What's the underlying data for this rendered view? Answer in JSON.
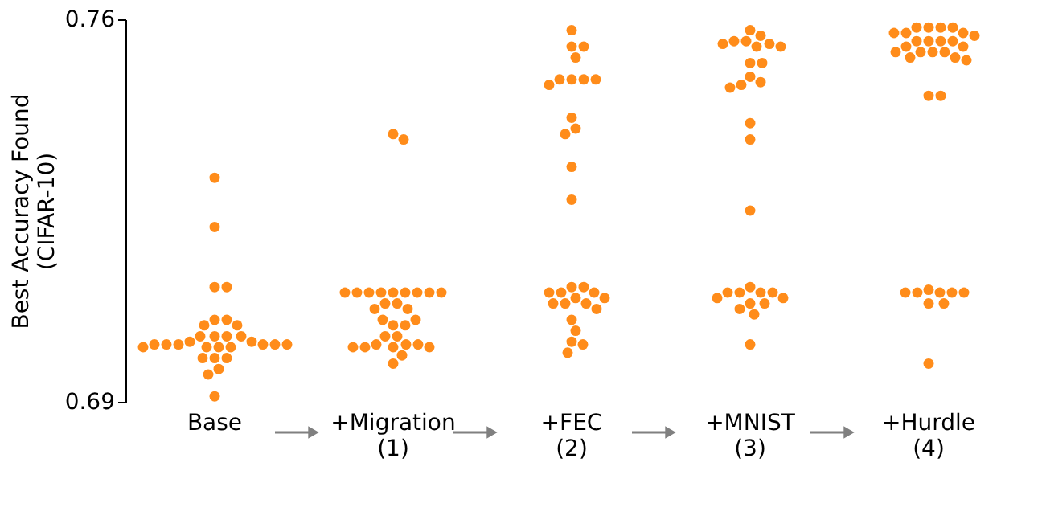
{
  "chart_data": {
    "type": "scatter",
    "ylabel": "Best Accuracy Found\n(CIFAR-10)",
    "categories": [
      "Base",
      "+Migration\n(1)",
      "+FEC\n(2)",
      "+MNIST\n(3)",
      "+Hurdle\n(4)"
    ],
    "ylim": [
      0.69,
      0.76
    ],
    "yticks": [
      0.69,
      0.76
    ],
    "tick_labels": "y",
    "series": [
      {
        "color": "#ff8c1a",
        "x": [
          "Base",
          "Base",
          "Base",
          "Base",
          "Base",
          "Base",
          "Base",
          "Base",
          "Base",
          "Base",
          "Base",
          "Base",
          "Base",
          "Base",
          "Base",
          "Base",
          "Base",
          "Base",
          "Base",
          "Base",
          "Base",
          "Base",
          "Base",
          "Base",
          "Base",
          "Base",
          "Base",
          "Base",
          "Base",
          "Base",
          "+Migration\n(1)",
          "+Migration\n(1)",
          "+Migration\n(1)",
          "+Migration\n(1)",
          "+Migration\n(1)",
          "+Migration\n(1)",
          "+Migration\n(1)",
          "+Migration\n(1)",
          "+Migration\n(1)",
          "+Migration\n(1)",
          "+Migration\n(1)",
          "+Migration\n(1)",
          "+Migration\n(1)",
          "+Migration\n(1)",
          "+Migration\n(1)",
          "+Migration\n(1)",
          "+Migration\n(1)",
          "+Migration\n(1)",
          "+Migration\n(1)",
          "+Migration\n(1)",
          "+Migration\n(1)",
          "+Migration\n(1)",
          "+Migration\n(1)",
          "+Migration\n(1)",
          "+Migration\n(1)",
          "+Migration\n(1)",
          "+Migration\n(1)",
          "+Migration\n(1)",
          "+Migration\n(1)",
          "+Migration\n(1)",
          "+FEC\n(2)",
          "+FEC\n(2)",
          "+FEC\n(2)",
          "+FEC\n(2)",
          "+FEC\n(2)",
          "+FEC\n(2)",
          "+FEC\n(2)",
          "+FEC\n(2)",
          "+FEC\n(2)",
          "+FEC\n(2)",
          "+FEC\n(2)",
          "+FEC\n(2)",
          "+FEC\n(2)",
          "+FEC\n(2)",
          "+FEC\n(2)",
          "+FEC\n(2)",
          "+FEC\n(2)",
          "+FEC\n(2)",
          "+FEC\n(2)",
          "+FEC\n(2)",
          "+FEC\n(2)",
          "+FEC\n(2)",
          "+FEC\n(2)",
          "+FEC\n(2)",
          "+FEC\n(2)",
          "+FEC\n(2)",
          "+FEC\n(2)",
          "+FEC\n(2)",
          "+FEC\n(2)",
          "+FEC\n(2)",
          "+MNIST\n(3)",
          "+MNIST\n(3)",
          "+MNIST\n(3)",
          "+MNIST\n(3)",
          "+MNIST\n(3)",
          "+MNIST\n(3)",
          "+MNIST\n(3)",
          "+MNIST\n(3)",
          "+MNIST\n(3)",
          "+MNIST\n(3)",
          "+MNIST\n(3)",
          "+MNIST\n(3)",
          "+MNIST\n(3)",
          "+MNIST\n(3)",
          "+MNIST\n(3)",
          "+MNIST\n(3)",
          "+MNIST\n(3)",
          "+MNIST\n(3)",
          "+MNIST\n(3)",
          "+MNIST\n(3)",
          "+MNIST\n(3)",
          "+MNIST\n(3)",
          "+MNIST\n(3)",
          "+MNIST\n(3)",
          "+MNIST\n(3)",
          "+MNIST\n(3)",
          "+MNIST\n(3)",
          "+MNIST\n(3)",
          "+MNIST\n(3)",
          "+Hurdle\n(4)",
          "+Hurdle\n(4)",
          "+Hurdle\n(4)",
          "+Hurdle\n(4)",
          "+Hurdle\n(4)",
          "+Hurdle\n(4)",
          "+Hurdle\n(4)",
          "+Hurdle\n(4)",
          "+Hurdle\n(4)",
          "+Hurdle\n(4)",
          "+Hurdle\n(4)",
          "+Hurdle\n(4)",
          "+Hurdle\n(4)",
          "+Hurdle\n(4)",
          "+Hurdle\n(4)",
          "+Hurdle\n(4)",
          "+Hurdle\n(4)",
          "+Hurdle\n(4)",
          "+Hurdle\n(4)",
          "+Hurdle\n(4)",
          "+Hurdle\n(4)",
          "+Hurdle\n(4)",
          "+Hurdle\n(4)",
          "+Hurdle\n(4)",
          "+Hurdle\n(4)",
          "+Hurdle\n(4)",
          "+Hurdle\n(4)",
          "+Hurdle\n(4)",
          "+Hurdle\n(4)",
          "+Hurdle\n(4)",
          "+Hurdle\n(4)",
          "+Hurdle\n(4)"
        ],
        "values": [
          0.731,
          0.722,
          0.711,
          0.711,
          0.705,
          0.705,
          0.704,
          0.704,
          0.702,
          0.702,
          0.702,
          0.702,
          0.701,
          0.701,
          0.7005,
          0.7005,
          0.7005,
          0.7005,
          0.7005,
          0.7005,
          0.7,
          0.7,
          0.7,
          0.7,
          0.698,
          0.698,
          0.698,
          0.696,
          0.695,
          0.691,
          0.739,
          0.738,
          0.71,
          0.71,
          0.71,
          0.71,
          0.71,
          0.71,
          0.71,
          0.71,
          0.71,
          0.708,
          0.708,
          0.707,
          0.707,
          0.704,
          0.704,
          0.705,
          0.705,
          0.702,
          0.702,
          0.7005,
          0.7005,
          0.7005,
          0.7,
          0.7,
          0.7,
          0.7,
          0.6985,
          0.697,
          0.758,
          0.755,
          0.755,
          0.753,
          0.749,
          0.749,
          0.749,
          0.749,
          0.748,
          0.742,
          0.74,
          0.739,
          0.733,
          0.727,
          0.711,
          0.711,
          0.71,
          0.71,
          0.71,
          0.709,
          0.709,
          0.708,
          0.708,
          0.708,
          0.707,
          0.705,
          0.703,
          0.701,
          0.7005,
          0.699,
          0.758,
          0.757,
          0.756,
          0.756,
          0.7555,
          0.7555,
          0.755,
          0.755,
          0.752,
          0.752,
          0.7495,
          0.7485,
          0.748,
          0.7475,
          0.741,
          0.738,
          0.725,
          0.711,
          0.71,
          0.71,
          0.71,
          0.71,
          0.709,
          0.709,
          0.708,
          0.708,
          0.707,
          0.706,
          0.7005,
          0.7585,
          0.7585,
          0.7585,
          0.7585,
          0.7575,
          0.7575,
          0.7575,
          0.757,
          0.756,
          0.756,
          0.756,
          0.756,
          0.755,
          0.755,
          0.754,
          0.754,
          0.754,
          0.754,
          0.753,
          0.753,
          0.7525,
          0.746,
          0.746,
          0.7105,
          0.71,
          0.71,
          0.71,
          0.71,
          0.71,
          0.708,
          0.708,
          0.697
        ]
      }
    ]
  }
}
